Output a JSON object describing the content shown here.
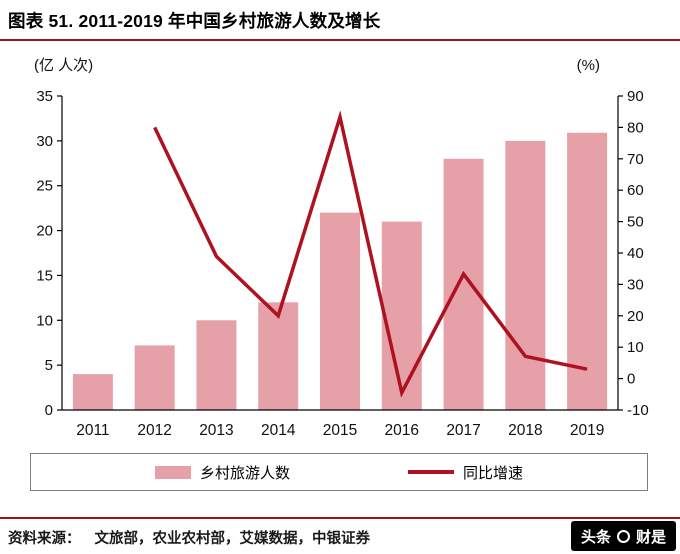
{
  "page": {
    "title": "图表 51. 2011-2019 年中国乡村旅游人数及增长"
  },
  "chart_data": {
    "type": "bar+line",
    "title": "2011-2019 年中国乡村旅游人数及增长",
    "categories": [
      "2011",
      "2012",
      "2013",
      "2014",
      "2015",
      "2016",
      "2017",
      "2018",
      "2019"
    ],
    "series": [
      {
        "name": "乡村旅游人数",
        "type": "bar",
        "axis": "left",
        "color": "#e5a0a8",
        "values": [
          4,
          7.2,
          10,
          12,
          22,
          21,
          28,
          30,
          30.9
        ]
      },
      {
        "name": "同比增速",
        "type": "line",
        "axis": "right",
        "color": "#ae1220",
        "values": [
          null,
          80,
          38.9,
          20,
          83.3,
          -4.5,
          33.3,
          7.1,
          3
        ]
      }
    ],
    "left_axis": {
      "label": "(亿 人次)",
      "min": 0,
      "max": 35,
      "step": 5
    },
    "right_axis": {
      "label": "(%)",
      "min": -10,
      "max": 90,
      "step": 10
    },
    "grid": "off",
    "legend_position": "bottom"
  },
  "footer": {
    "source_label": "资料来源：",
    "source_text": "文旅部，农业农村部，艾媒数据，中银证券",
    "watermark_prefix": "头条",
    "watermark_name": "财是"
  }
}
